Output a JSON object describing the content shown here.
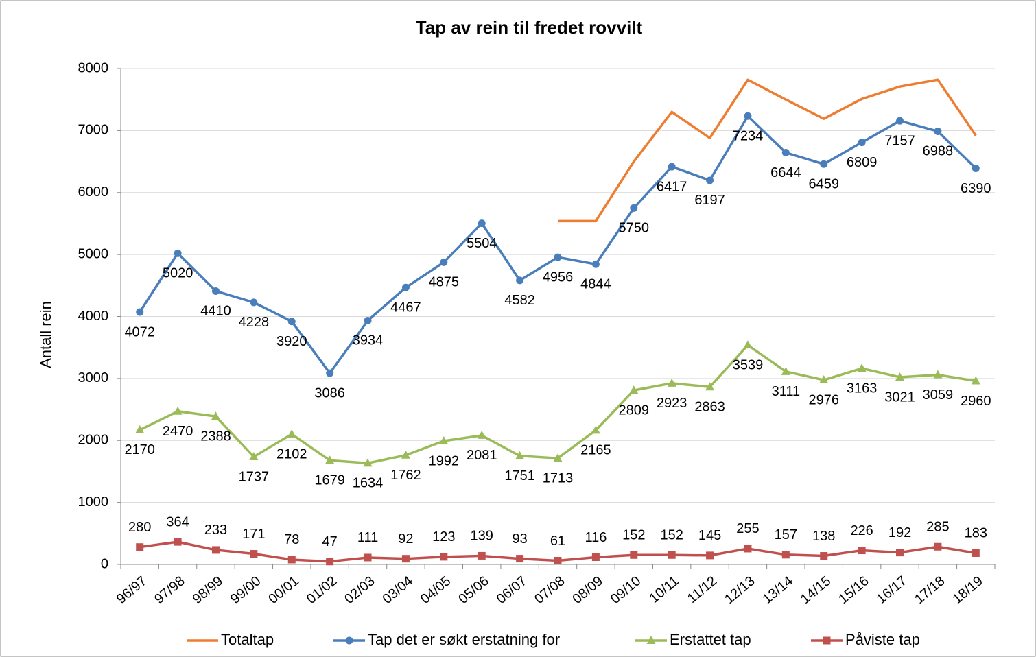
{
  "chart_data": {
    "type": "line",
    "title": "Tap av rein til fredet rovvilt",
    "y_label": "Antall rein",
    "categories": [
      "96/97",
      "97/98",
      "98/99",
      "99/00",
      "00/01",
      "01/02",
      "02/03",
      "03/04",
      "04/05",
      "05/06",
      "06/07",
      "07/08",
      "08/09",
      "09/10",
      "10/11",
      "11/12",
      "12/13",
      "13/14",
      "14/15",
      "15/16",
      "16/17",
      "17/18",
      "18/19"
    ],
    "series": [
      {
        "name": "Totaltap",
        "color": "#ed7d31",
        "marker": "none",
        "values": [
          null,
          null,
          null,
          null,
          null,
          null,
          null,
          null,
          null,
          null,
          null,
          5540,
          5540,
          6500,
          7300,
          6880,
          7820,
          7500,
          7190,
          7510,
          7710,
          7820,
          6920
        ]
      },
      {
        "name": "Tap det er søkt erstatning for",
        "color": "#4a7ebb",
        "marker": "circle",
        "values": [
          4072,
          5020,
          4410,
          4228,
          3920,
          3086,
          3934,
          4467,
          4875,
          5504,
          4582,
          4956,
          4844,
          5750,
          6417,
          6197,
          7234,
          6644,
          6459,
          6809,
          7157,
          6988,
          6390
        ],
        "show_labels": true
      },
      {
        "name": "Erstattet tap",
        "color": "#9bbb59",
        "marker": "triangle",
        "values": [
          2170,
          2470,
          2388,
          1737,
          2102,
          1679,
          1634,
          1762,
          1992,
          2081,
          1751,
          1713,
          2165,
          2809,
          2923,
          2863,
          3539,
          3111,
          2976,
          3163,
          3021,
          3059,
          2960
        ],
        "show_labels": true
      },
      {
        "name": "Påviste tap",
        "color": "#c0504d",
        "marker": "square",
        "values": [
          280,
          364,
          233,
          171,
          78,
          47,
          111,
          92,
          123,
          139,
          93,
          61,
          116,
          152,
          152,
          145,
          255,
          157,
          138,
          226,
          192,
          285,
          183
        ],
        "show_labels": true,
        "label_position": "above"
      }
    ],
    "ylim": [
      0,
      8000
    ],
    "yticks": [
      0,
      1000,
      2000,
      3000,
      4000,
      5000,
      6000,
      7000,
      8000
    ],
    "grid": true,
    "legend": "bottom"
  }
}
